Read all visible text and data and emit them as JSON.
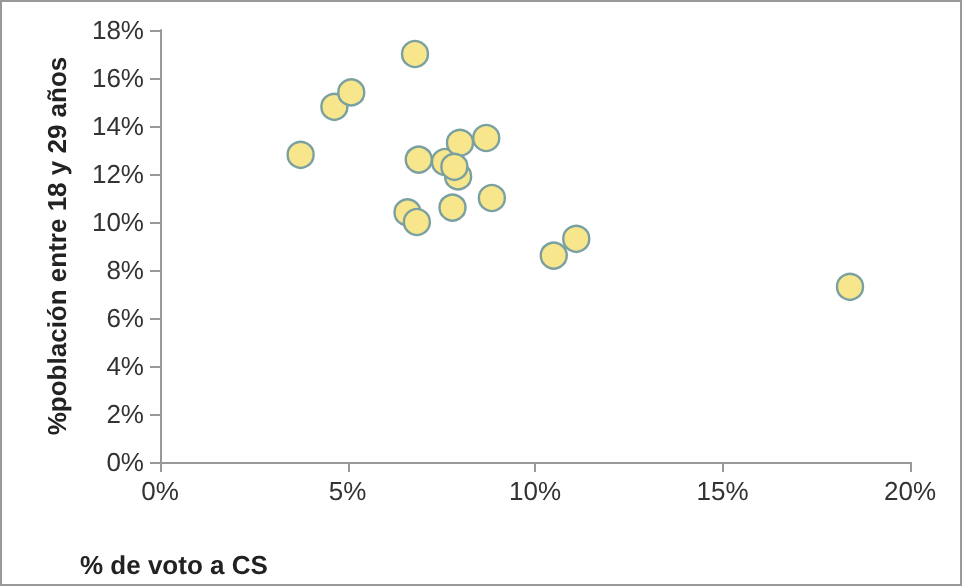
{
  "chart_data": {
    "type": "scatter",
    "xlabel": "% de voto a CS",
    "ylabel": "%población entre 18 y 29 años",
    "x": [
      6.8,
      4.65,
      5.1,
      3.75,
      6.9,
      7.6,
      8.0,
      8.7,
      7.95,
      7.85,
      6.6,
      6.85,
      7.8,
      8.85,
      10.5,
      11.1,
      18.4
    ],
    "values": [
      17.0,
      14.8,
      15.4,
      12.8,
      12.6,
      12.5,
      13.3,
      13.5,
      11.9,
      12.3,
      10.4,
      10.0,
      10.6,
      11.0,
      8.6,
      9.3,
      7.3
    ],
    "color": "#f8e68c",
    "marker": "circle",
    "xlim": [
      0,
      20
    ],
    "xticks": [
      {
        "value": 0,
        "label": "0%"
      },
      {
        "value": 5,
        "label": "5%"
      },
      {
        "value": 10,
        "label": "10%"
      },
      {
        "value": 15,
        "label": "15%"
      },
      {
        "value": 20,
        "label": "20%"
      }
    ],
    "ylim": [
      0,
      18
    ],
    "yticks": [
      {
        "value": 0,
        "label": "0%"
      },
      {
        "value": 2,
        "label": "2%"
      },
      {
        "value": 4,
        "label": "4%"
      },
      {
        "value": 6,
        "label": "6%"
      },
      {
        "value": 8,
        "label": "8%"
      },
      {
        "value": 10,
        "label": "10%"
      },
      {
        "value": 12,
        "label": "12%"
      },
      {
        "value": 14,
        "label": "14%"
      },
      {
        "value": 16,
        "label": "16%"
      },
      {
        "value": 18,
        "label": "18%"
      }
    ]
  }
}
